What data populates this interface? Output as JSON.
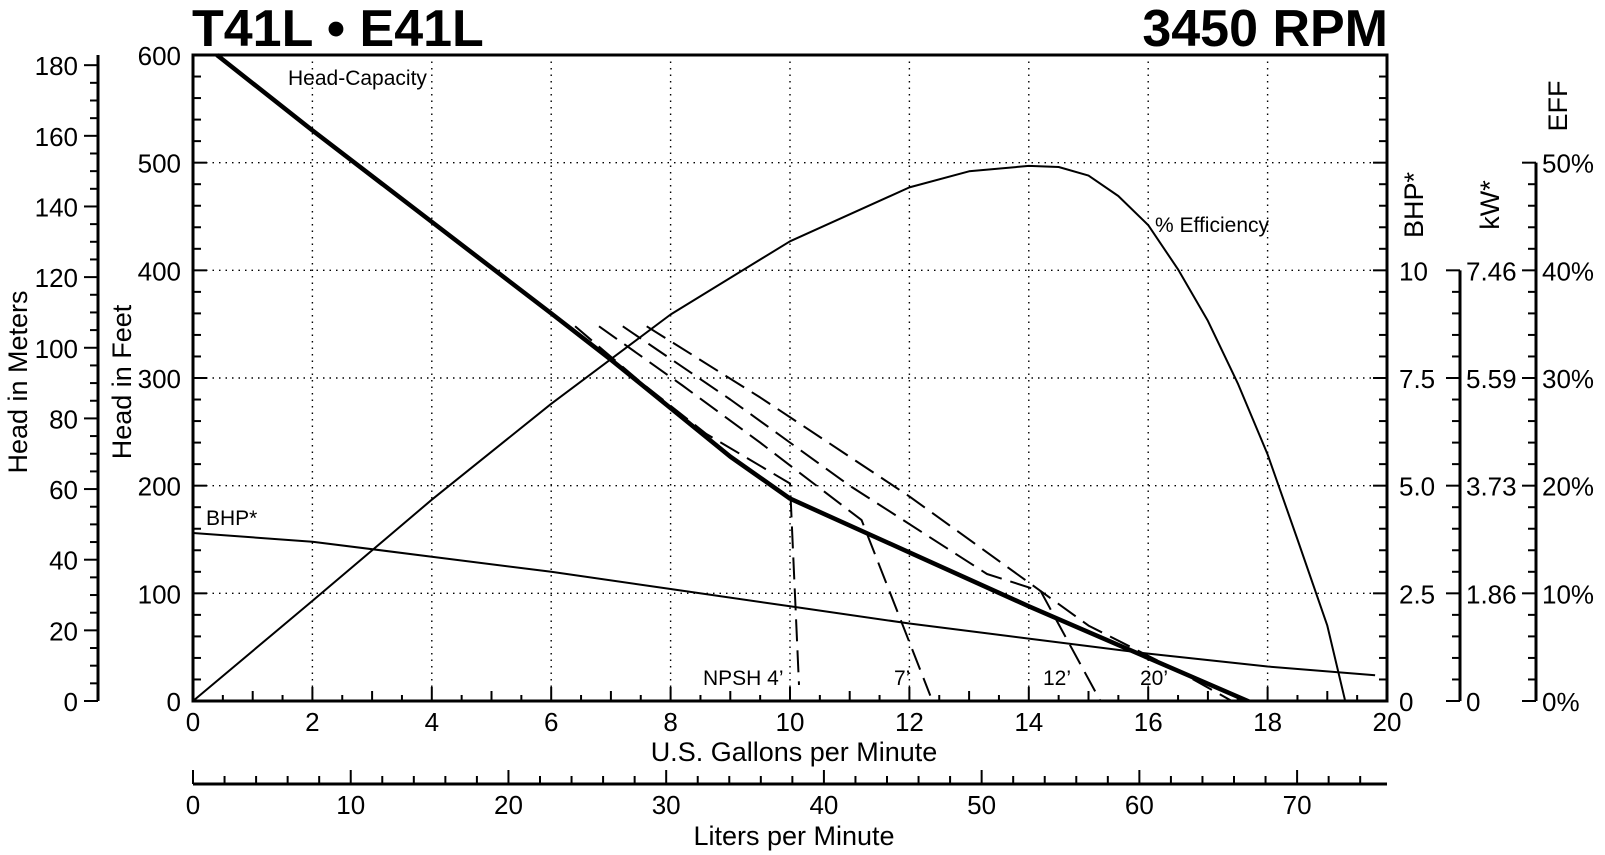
{
  "chart_data": {
    "type": "line",
    "title": "T41L • E41L",
    "subtitle": "3450 RPM",
    "xlabel": "U.S. Gallons per Minute",
    "xlabel_secondary": "Liters per Minute",
    "ylabel_feet": "Head in Feet",
    "ylabel_meters": "Head in Meters",
    "ylabel_bhp": "BHP*",
    "ylabel_kw": "kW*",
    "ylabel_eff": "EFF",
    "xlim": [
      0,
      20
    ],
    "ylim_feet": [
      0,
      600
    ],
    "ylim_meters": [
      0,
      182.88
    ],
    "xlim_lpm": [
      0,
      75.7
    ],
    "grid": true,
    "x_ticks": [
      "0",
      "2",
      "4",
      "6",
      "8",
      "10",
      "12",
      "14",
      "16",
      "18",
      "20"
    ],
    "x_ticks_lpm": [
      "0",
      "10",
      "20",
      "30",
      "40",
      "50",
      "60",
      "70"
    ],
    "y_ticks_feet": [
      "0",
      "100",
      "200",
      "300",
      "400",
      "500",
      "600"
    ],
    "y_ticks_meters": [
      "0",
      "20",
      "40",
      "60",
      "80",
      "100",
      "120",
      "140",
      "160",
      "180"
    ],
    "bhp_ticks": [
      "0",
      "2.5",
      "5.0",
      "7.5",
      "10"
    ],
    "kw_ticks": [
      "0",
      "1.86",
      "3.73",
      "5.59",
      "7.46"
    ],
    "eff_ticks": [
      "0%",
      "10%",
      "20%",
      "30%",
      "40%",
      "50%"
    ],
    "series": [
      {
        "name": "Head-Capacity",
        "axis": "feet",
        "style": "thick",
        "x": [
          0.4,
          2,
          4,
          6,
          7,
          8,
          9,
          10,
          12,
          14,
          16,
          18,
          19.8
        ],
        "y": [
          600,
          530,
          445,
          360,
          317,
          272,
          227,
          188,
          138,
          88,
          40,
          -8,
          -48
        ]
      },
      {
        "name": "% Efficiency",
        "axis": "eff",
        "style": "thin",
        "x": [
          0,
          2,
          4,
          6,
          8,
          10,
          12,
          13,
          14,
          14.5,
          15,
          15.5,
          16,
          16.5,
          17,
          17.5,
          18,
          18.5,
          19,
          19.3
        ],
        "y": [
          0,
          9.3,
          18.7,
          27.6,
          35.9,
          42.7,
          47.7,
          49.2,
          49.7,
          49.6,
          48.8,
          46.9,
          44.2,
          40.1,
          35.3,
          29.5,
          22.9,
          15,
          7,
          0
        ]
      },
      {
        "name": "BHP*",
        "axis": "bhp",
        "style": "thin",
        "x": [
          0,
          2,
          4,
          6,
          8,
          10,
          12,
          14,
          16,
          18,
          19.8
        ],
        "y": [
          3.9,
          3.7,
          3.35,
          3.0,
          2.6,
          2.2,
          1.8,
          1.45,
          1.1,
          0.8,
          0.6
        ]
      },
      {
        "name": "NPSH 4’",
        "axis": "feet",
        "style": "dashed",
        "x": [
          6.4,
          7.5,
          8.6,
          10,
          10.15
        ],
        "y": [
          348,
          296,
          248,
          202,
          15
        ]
      },
      {
        "name": "7’",
        "axis": "feet",
        "style": "dashed",
        "x": [
          6.8,
          8.2,
          9.5,
          11.2,
          12.35
        ],
        "y": [
          348,
          293,
          240,
          168,
          5
        ]
      },
      {
        "name": "12’",
        "axis": "feet",
        "style": "dashed",
        "x": [
          7.2,
          9,
          11,
          13.3,
          14.2,
          15.2
        ],
        "y": [
          348,
          280,
          200,
          118,
          102,
          0
        ]
      },
      {
        "name": "20’",
        "axis": "feet",
        "style": "dashed",
        "x": [
          7.6,
          9.5,
          12,
          15,
          16.5,
          17.4
        ],
        "y": [
          348,
          282,
          190,
          70,
          28,
          0
        ]
      }
    ],
    "annotations": {
      "head_capacity": "Head-Capacity",
      "efficiency": "% Efficiency",
      "bhp": "BHP*",
      "npsh4": "NPSH 4’",
      "npsh7": "7’",
      "npsh12": "12’",
      "npsh20": "20’"
    }
  }
}
